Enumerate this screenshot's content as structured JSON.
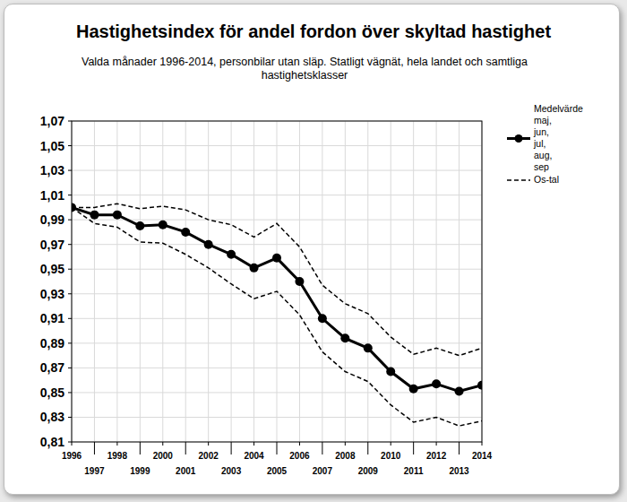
{
  "chart_data": {
    "type": "line",
    "title": "Hastighetsindex för andel fordon över skyltad hastighet",
    "subtitle": "Valda månader 1996-2014, personbilar utan släp. Statligt vägnät, hela landet och samtliga hastighetsklasser",
    "x": [
      1996,
      1997,
      1998,
      1999,
      2000,
      2001,
      2002,
      2003,
      2004,
      2005,
      2006,
      2007,
      2008,
      2009,
      2010,
      2011,
      2012,
      2013,
      2014
    ],
    "xlim": [
      1996,
      2014
    ],
    "xticks": [
      1996,
      1997,
      1998,
      1999,
      2000,
      2001,
      2002,
      2003,
      2004,
      2005,
      2006,
      2007,
      2008,
      2009,
      2010,
      2011,
      2012,
      2013,
      2014
    ],
    "ylim": [
      0.81,
      1.07
    ],
    "yticks": [
      {
        "value": 0.81,
        "label": "0,81"
      },
      {
        "value": 0.83,
        "label": "0,83"
      },
      {
        "value": 0.85,
        "label": "0,85"
      },
      {
        "value": 0.87,
        "label": "0,87"
      },
      {
        "value": 0.89,
        "label": "0,89"
      },
      {
        "value": 0.91,
        "label": "0,91"
      },
      {
        "value": 0.93,
        "label": "0,93"
      },
      {
        "value": 0.95,
        "label": "0,95"
      },
      {
        "value": 0.97,
        "label": "0,97"
      },
      {
        "value": 0.99,
        "label": "0,99"
      },
      {
        "value": 1.01,
        "label": "1,01"
      },
      {
        "value": 1.03,
        "label": "1,03"
      },
      {
        "value": 1.05,
        "label": "1,05"
      },
      {
        "value": 1.07,
        "label": "1,07"
      }
    ],
    "grid": true,
    "legend": "right",
    "series": [
      {
        "name": "Medelvärde maj, jun, jul, aug, sep",
        "color": "#000000",
        "marker": "circle",
        "line_style": "solid",
        "values": [
          1.0,
          0.994,
          0.994,
          0.985,
          0.986,
          0.98,
          0.97,
          0.962,
          0.951,
          0.959,
          0.94,
          0.91,
          0.894,
          0.886,
          0.867,
          0.853,
          0.857,
          0.851,
          0.856
        ]
      },
      {
        "name": "Os-tal",
        "color": "#000000",
        "marker": "none",
        "line_style": "dashed",
        "values": [
          1.0,
          1.0,
          1.003,
          0.999,
          1.001,
          0.998,
          0.99,
          0.986,
          0.976,
          0.987,
          0.968,
          0.937,
          0.922,
          0.914,
          0.895,
          0.881,
          0.886,
          0.88,
          0.886
        ],
        "lower": [
          1.0,
          0.987,
          0.984,
          0.972,
          0.971,
          0.962,
          0.951,
          0.938,
          0.926,
          0.932,
          0.913,
          0.883,
          0.867,
          0.859,
          0.84,
          0.826,
          0.83,
          0.823,
          0.827
        ]
      }
    ]
  }
}
